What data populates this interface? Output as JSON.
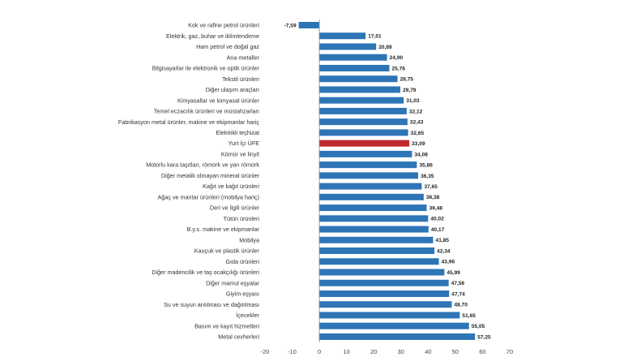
{
  "chart_data": {
    "type": "bar",
    "orientation": "horizontal",
    "title": "",
    "xlabel": "",
    "ylabel": "",
    "xlim": [
      -20,
      70
    ],
    "xticks": [
      -20,
      -10,
      0,
      10,
      20,
      30,
      40,
      50,
      60,
      70
    ],
    "grid": false,
    "legend": "none",
    "colors": {
      "default": "#2e75b6",
      "highlight": "#c0272d",
      "axis": "#888888"
    },
    "highlight_category": "Yurt İçi ÜFE",
    "categories": [
      "Kok ve rafine petrol ürünleri",
      "Elektrik, gaz, buhar ve iklimlendirme",
      "Ham petrol ve doğal gaz",
      "Ana metaller",
      "Bilgisayarlar ile elektronik ve optik ürünler",
      "Tekstil ürünleri",
      "Diğer ulaşım araçları",
      "Kimyasallar ve kimyasal ürünler",
      "Temel eczacılık ürünleri ve müstahzarları",
      "Fabrikasyon metal ürünler, makine ve ekipmanlar hariç",
      "Elektrikli teçhizat",
      "Yurt İçi ÜFE",
      "Kömür ve linyit",
      "Motorlu kara taşıtları, römork ve yarı römork",
      "Diğer metalik olmayan mineral ürünler",
      "Kağıt ve kağıt ürünleri",
      "Ağaç ve mantar ürünleri (mobilya hariç)",
      "Deri ve ilgili ürünler",
      "Tütün ürünleri",
      "B.y.s. makine ve ekipmanlar",
      "Mobilya",
      "Kauçuk ve plastik ürünler",
      "Gıda ürünleri",
      "Diğer madencilik ve taş ocakçılığı ürünleri",
      "Diğer mamul eşyalar",
      "Giyim eşyası",
      "Su ve suyun arıtılması ve dağıtılması",
      "İçecekler",
      "Basım ve kayıt hizmetleri",
      "Metal cevherleri"
    ],
    "values": [
      -7.59,
      17.01,
      20.89,
      24.9,
      25.76,
      28.75,
      29.79,
      31.03,
      32.12,
      32.43,
      32.65,
      33.09,
      34.08,
      35.86,
      36.35,
      37.65,
      38.38,
      39.48,
      40.02,
      40.17,
      41.85,
      42.34,
      43.96,
      45.99,
      47.56,
      47.74,
      48.7,
      51.65,
      55.05,
      57.25
    ],
    "value_labels": [
      "-7,59",
      "17,01",
      "20,89",
      "24,90",
      "25,76",
      "28,75",
      "29,79",
      "31,03",
      "32,12",
      "32,43",
      "32,65",
      "33,09",
      "34,08",
      "35,86",
      "36,35",
      "37,65",
      "38,38",
      "39,48",
      "40,02",
      "40,17",
      "41,85",
      "42,34",
      "43,96",
      "45,99",
      "47,56",
      "47,74",
      "48,70",
      "51,65",
      "55,05",
      "57,25"
    ]
  }
}
